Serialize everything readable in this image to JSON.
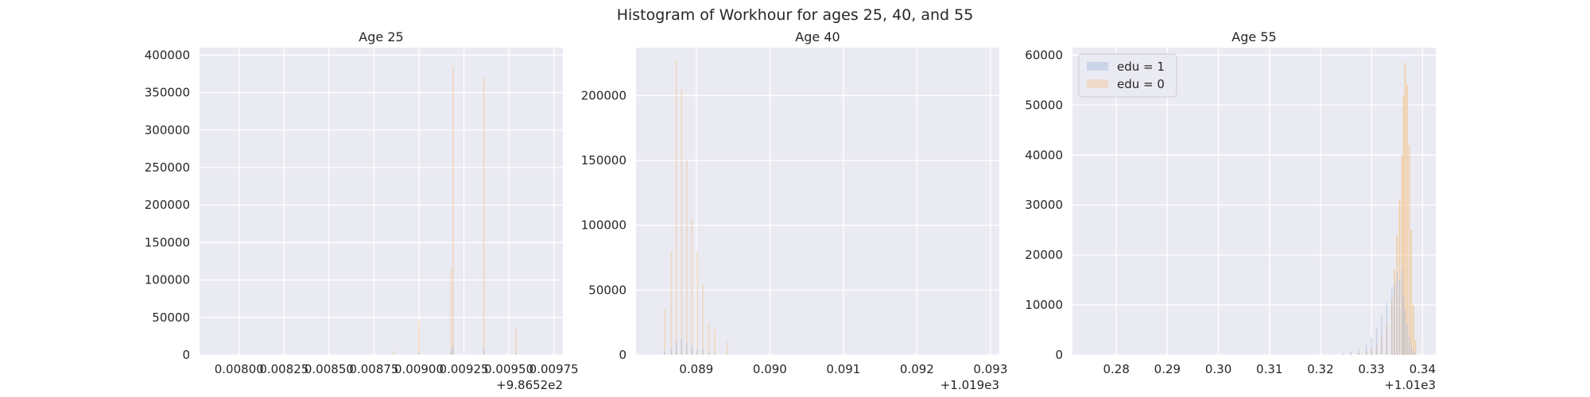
{
  "figure": {
    "title": "Histogram of Workhour for ages 25, 40, and 55"
  },
  "colors": {
    "plot_bg": "#eaeaf2",
    "grid": "#ffffff",
    "edu1": "#a7bde0",
    "edu0": "#f2c89a",
    "text": "#262626"
  },
  "chart_data": [
    {
      "type": "bar",
      "title": "Age 25",
      "x_ticks": [
        "0.00800",
        "0.00825",
        "0.00850",
        "0.00875",
        "0.00900",
        "0.00925",
        "0.00950",
        "0.00975"
      ],
      "x_tick_values": [
        0.008,
        0.00825,
        0.0085,
        0.00875,
        0.009,
        0.00925,
        0.0095,
        0.00975
      ],
      "x_offset": "+9.8652e2",
      "xlim": [
        0.00778,
        0.0098
      ],
      "ylim": [
        0,
        410000
      ],
      "y_ticks": [
        0,
        50000,
        100000,
        150000,
        200000,
        250000,
        300000,
        350000,
        400000
      ],
      "bins": [
        {
          "x": 0.00886,
          "edu1": 0,
          "edu0": 5000
        },
        {
          "x": 0.009,
          "edu1": 3000,
          "edu0": 45000
        },
        {
          "x": 0.00918,
          "edu1": 8000,
          "edu0": 115000
        },
        {
          "x": 0.00919,
          "edu1": 12000,
          "edu0": 385000
        },
        {
          "x": 0.00936,
          "edu1": 9000,
          "edu0": 370000
        },
        {
          "x": 0.00954,
          "edu1": 2000,
          "edu0": 35000
        }
      ]
    },
    {
      "type": "bar",
      "title": "Age 40",
      "x_ticks": [
        "0.089",
        "0.090",
        "0.091",
        "0.092",
        "0.093"
      ],
      "x_tick_values": [
        0.089,
        0.09,
        0.091,
        0.092,
        0.093
      ],
      "x_offset": "+1.019e3",
      "xlim": [
        0.08818,
        0.09312
      ],
      "ylim": [
        0,
        237000
      ],
      "y_ticks": [
        0,
        50000,
        100000,
        150000,
        200000
      ],
      "bins": [
        {
          "x": 0.08857,
          "edu1": 3000,
          "edu0": 35000
        },
        {
          "x": 0.08866,
          "edu1": 5000,
          "edu0": 80000
        },
        {
          "x": 0.08873,
          "edu1": 10000,
          "edu0": 227000
        },
        {
          "x": 0.0888,
          "edu1": 12000,
          "edu0": 205000
        },
        {
          "x": 0.08887,
          "edu1": 9000,
          "edu0": 150000
        },
        {
          "x": 0.08894,
          "edu1": 7000,
          "edu0": 105000
        },
        {
          "x": 0.08901,
          "edu1": 5000,
          "edu0": 80000
        },
        {
          "x": 0.08909,
          "edu1": 4000,
          "edu0": 55000
        },
        {
          "x": 0.08917,
          "edu1": 2000,
          "edu0": 25000
        },
        {
          "x": 0.08925,
          "edu1": 1000,
          "edu0": 20000
        },
        {
          "x": 0.08942,
          "edu1": 500,
          "edu0": 10000
        }
      ]
    },
    {
      "type": "bar",
      "title": "Age 55",
      "x_ticks": [
        "0.28",
        "0.29",
        "0.30",
        "0.31",
        "0.32",
        "0.33",
        "0.34"
      ],
      "x_tick_values": [
        0.28,
        0.29,
        0.3,
        0.31,
        0.32,
        0.33,
        0.34
      ],
      "x_offset": "+1.01e3",
      "xlim": [
        0.2714,
        0.3426
      ],
      "ylim": [
        0,
        61500
      ],
      "y_ticks": [
        0,
        10000,
        20000,
        30000,
        40000,
        50000,
        60000
      ],
      "legend": {
        "placement": "upper left",
        "entries": [
          "edu = 1",
          "edu = 0"
        ]
      },
      "bins": [
        {
          "x": 0.3245,
          "edu1": 300,
          "edu0": 100
        },
        {
          "x": 0.326,
          "edu1": 600,
          "edu0": 200
        },
        {
          "x": 0.3275,
          "edu1": 1200,
          "edu0": 400
        },
        {
          "x": 0.329,
          "edu1": 2000,
          "edu0": 700
        },
        {
          "x": 0.33,
          "edu1": 3500,
          "edu0": 1200
        },
        {
          "x": 0.331,
          "edu1": 5500,
          "edu0": 2000
        },
        {
          "x": 0.332,
          "edu1": 8000,
          "edu0": 3500
        },
        {
          "x": 0.333,
          "edu1": 10500,
          "edu0": 6000
        },
        {
          "x": 0.334,
          "edu1": 13500,
          "edu0": 11000
        },
        {
          "x": 0.3345,
          "edu1": 14000,
          "edu0": 17000
        },
        {
          "x": 0.335,
          "edu1": 16500,
          "edu0": 24000
        },
        {
          "x": 0.3355,
          "edu1": 15000,
          "edu0": 31000
        },
        {
          "x": 0.336,
          "edu1": 17000,
          "edu0": 40000
        },
        {
          "x": 0.3363,
          "edu1": 12000,
          "edu0": 52000
        },
        {
          "x": 0.3366,
          "edu1": 9000,
          "edu0": 58500
        },
        {
          "x": 0.337,
          "edu1": 6000,
          "edu0": 54000
        },
        {
          "x": 0.3374,
          "edu1": 3500,
          "edu0": 42000
        },
        {
          "x": 0.3378,
          "edu1": 1800,
          "edu0": 25000
        },
        {
          "x": 0.3382,
          "edu1": 700,
          "edu0": 10000
        },
        {
          "x": 0.3386,
          "edu1": 200,
          "edu0": 3000
        }
      ]
    }
  ]
}
